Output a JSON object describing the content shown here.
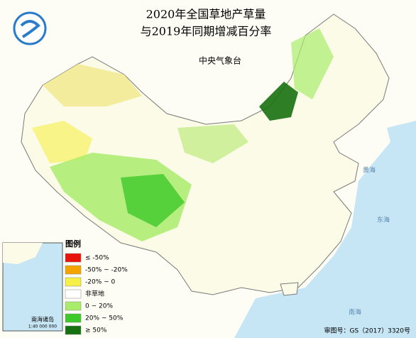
{
  "header": {
    "title_lines": [
      "2020年全国草地产草量",
      "与2019年同期增减百分率"
    ],
    "agency": "中央气象台"
  },
  "legend": {
    "title": "图例",
    "items": [
      {
        "label": "≤ -50%",
        "color": "#e8140c"
      },
      {
        "label": "-50% ~ -20%",
        "color": "#f5a300"
      },
      {
        "label": "-20% ~ 0",
        "color": "#f7f046"
      },
      {
        "label": "非草地",
        "color": "#ffffff"
      },
      {
        "label": "0 ~ 20%",
        "color": "#a9ec6c"
      },
      {
        "label": "20% ~ 50%",
        "color": "#3fc82a"
      },
      {
        "label": "≥ 50%",
        "color": "#17700f"
      }
    ]
  },
  "map_labels": [
    "黄海",
    "东海",
    "南海"
  ],
  "inset": {
    "label": "南海诸岛",
    "scale": "1:40 000 000"
  },
  "footer": {
    "approval": "审图号：GS（2017）3320号"
  }
}
